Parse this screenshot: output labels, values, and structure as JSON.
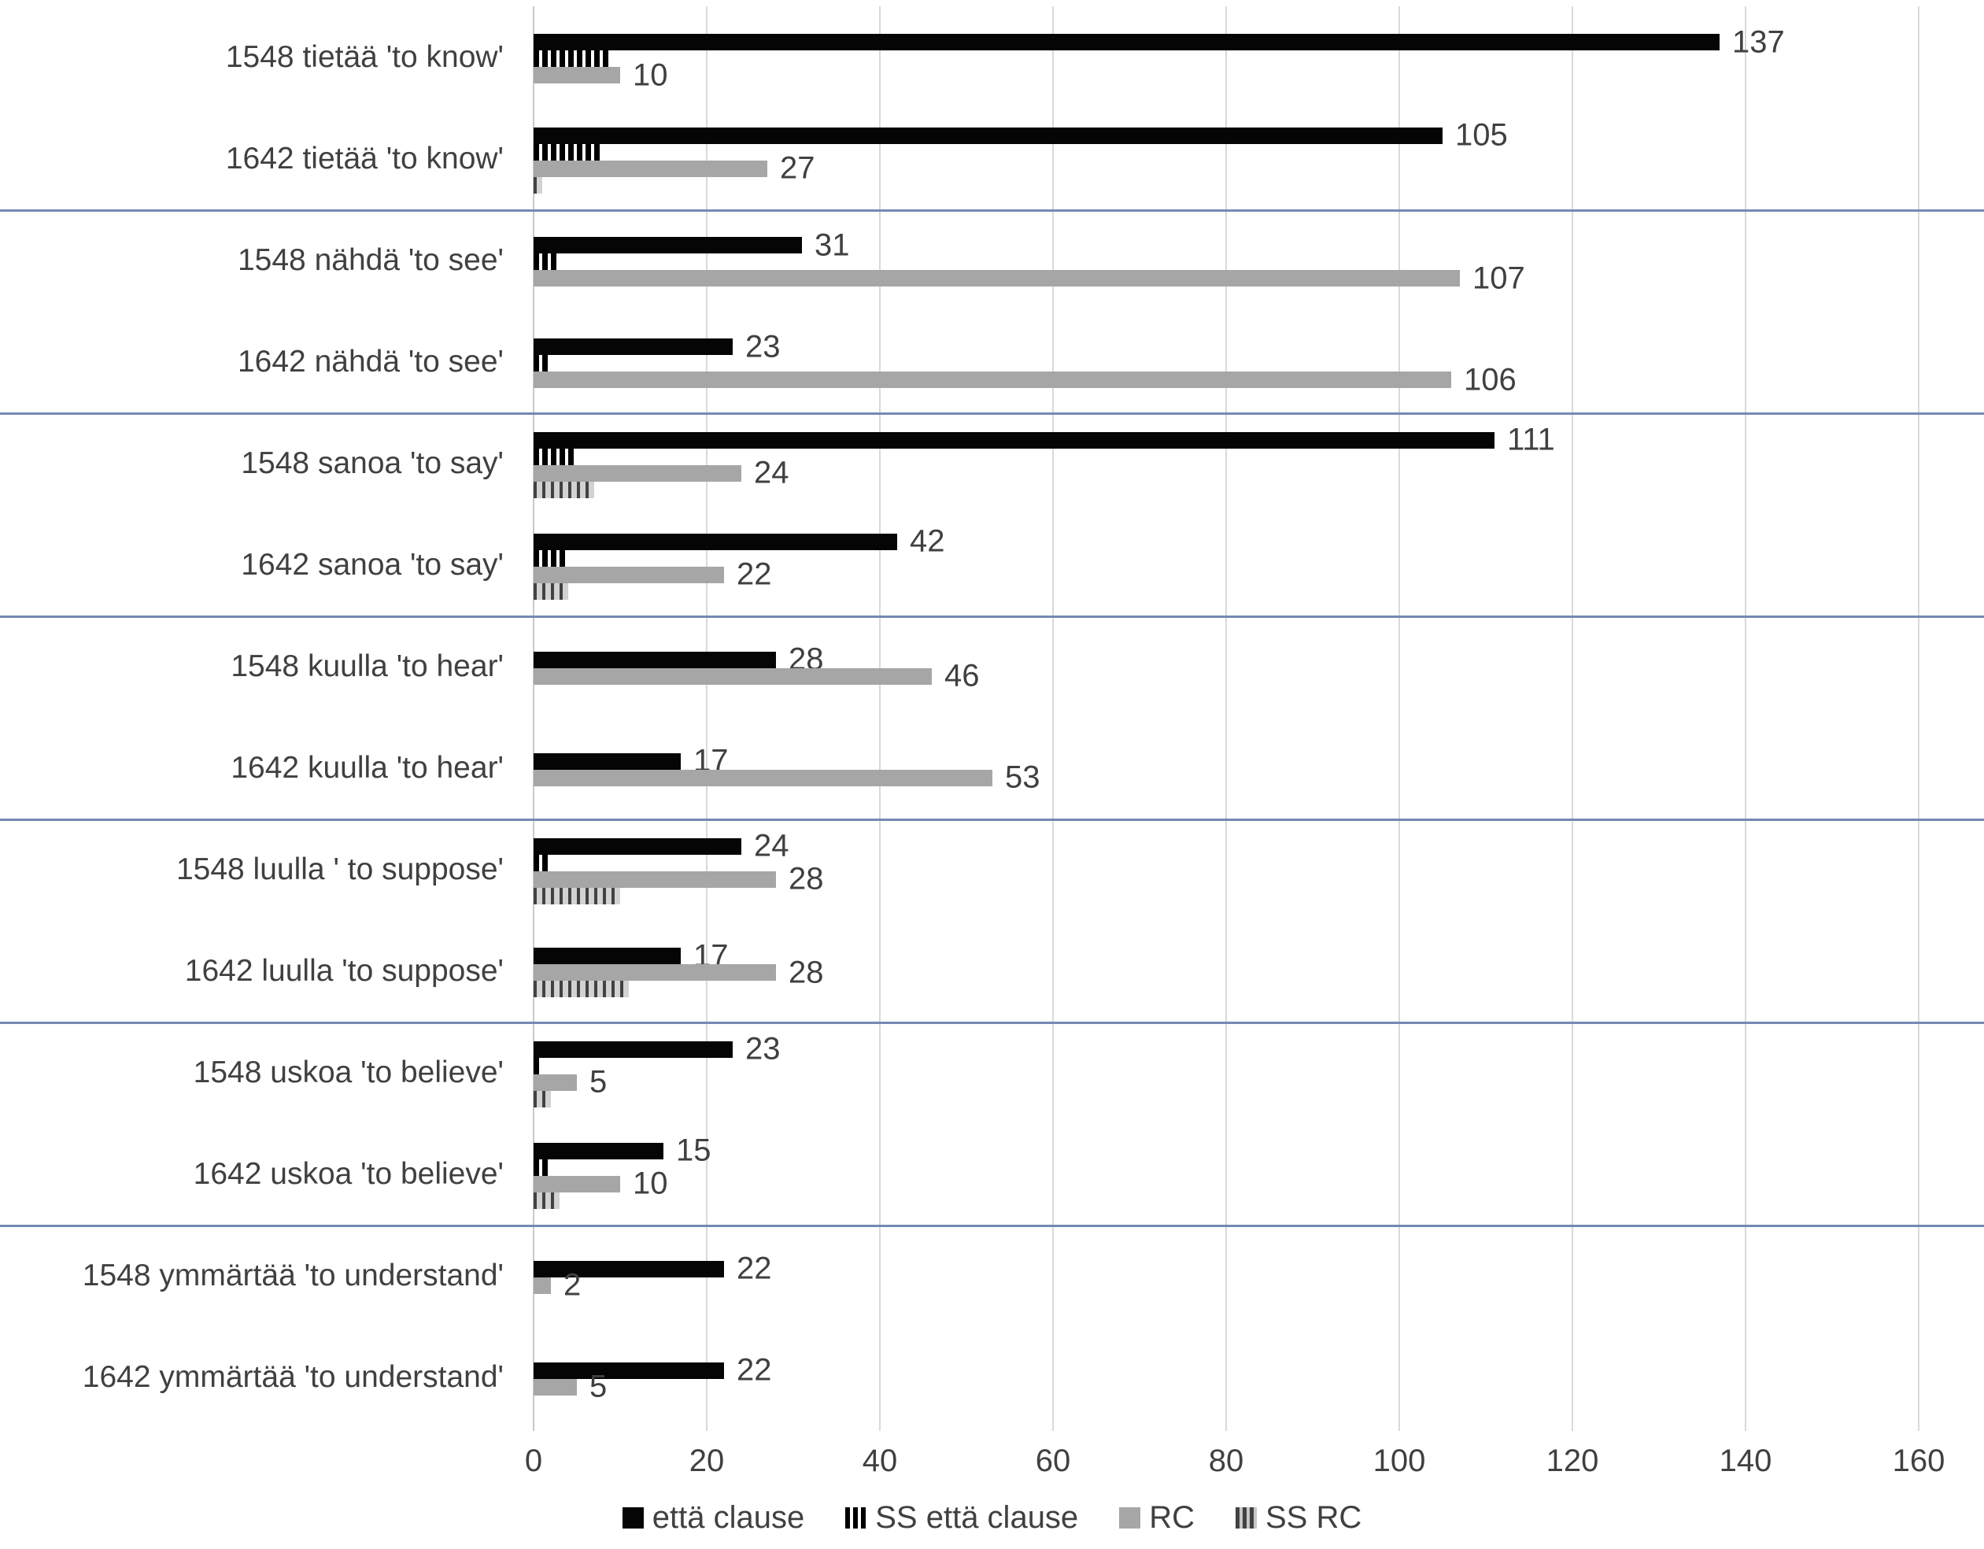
{
  "chart_data": {
    "type": "bar",
    "orientation": "horizontal",
    "title": "",
    "xlabel": "",
    "ylabel": "",
    "x_axis": {
      "ticks": [
        0,
        20,
        40,
        60,
        80,
        100,
        120,
        140,
        160
      ],
      "min": 0,
      "max": 160,
      "grid": true
    },
    "legend": [
      {
        "key": "etta",
        "label": "että clause",
        "style": "solid-black"
      },
      {
        "key": "ss_etta",
        "label": "SS että clause",
        "style": "striped-black"
      },
      {
        "key": "rc",
        "label": "RC",
        "style": "solid-gray"
      },
      {
        "key": "ss_rc",
        "label": "SS RC",
        "style": "striped-gray"
      }
    ],
    "legend_position": "bottom-center",
    "series_order": [
      "etta",
      "ss_etta",
      "rc",
      "ss_rc"
    ],
    "colors": {
      "etta": "#050505",
      "rc": "#a6a6a6",
      "separator_blue": "#7489b2",
      "gridline": "#d9d9d9",
      "text": "#404040"
    },
    "categories": [
      {
        "label": "1548 tietää 'to know'",
        "etta": 137,
        "ss_etta": 9,
        "rc": 10,
        "ss_rc": 0,
        "value_labels": {
          "etta": "137",
          "rc": "10"
        }
      },
      {
        "label": "1642 tietää 'to know'",
        "etta": 105,
        "ss_etta": 8,
        "rc": 27,
        "ss_rc": 1,
        "value_labels": {
          "etta": "105",
          "rc": "27"
        }
      },
      {
        "label": "1548 nähdä 'to see'",
        "etta": 31,
        "ss_etta": 3,
        "rc": 107,
        "ss_rc": 0,
        "value_labels": {
          "etta": "31",
          "rc": "107"
        }
      },
      {
        "label": "1642 nähdä 'to see'",
        "etta": 23,
        "ss_etta": 2,
        "rc": 106,
        "ss_rc": 0,
        "value_labels": {
          "etta": "23",
          "rc": "106"
        }
      },
      {
        "label": "1548 sanoa 'to say'",
        "etta": 111,
        "ss_etta": 5,
        "rc": 24,
        "ss_rc": 7,
        "value_labels": {
          "etta": "111",
          "rc": "24"
        }
      },
      {
        "label": "1642 sanoa 'to say'",
        "etta": 42,
        "ss_etta": 4,
        "rc": 22,
        "ss_rc": 4,
        "value_labels": {
          "etta": "42",
          "rc": "22"
        }
      },
      {
        "label": "1548 kuulla 'to hear'",
        "etta": 28,
        "ss_etta": 0,
        "rc": 46,
        "ss_rc": 0,
        "value_labels": {
          "etta": "28",
          "rc": "46"
        }
      },
      {
        "label": "1642 kuulla 'to hear'",
        "etta": 17,
        "ss_etta": 0,
        "rc": 53,
        "ss_rc": 0,
        "value_labels": {
          "etta": "17",
          "rc": "53"
        }
      },
      {
        "label": "1548 luulla ' to suppose'",
        "etta": 24,
        "ss_etta": 2,
        "rc": 28,
        "ss_rc": 10,
        "value_labels": {
          "etta": "24",
          "rc": "28"
        }
      },
      {
        "label": "1642 luulla 'to suppose'",
        "etta": 17,
        "ss_etta": 0,
        "rc": 28,
        "ss_rc": 11,
        "value_labels": {
          "etta": "17",
          "rc": "28"
        }
      },
      {
        "label": "1548 uskoa 'to believe'",
        "etta": 23,
        "ss_etta": 1,
        "rc": 5,
        "ss_rc": 2,
        "value_labels": {
          "etta": "23",
          "rc": "5"
        }
      },
      {
        "label": "1642 uskoa 'to believe'",
        "etta": 15,
        "ss_etta": 2,
        "rc": 10,
        "ss_rc": 3,
        "value_labels": {
          "etta": "15",
          "rc": "10"
        }
      },
      {
        "label": "1548 ymmärtää 'to understand'",
        "etta": 22,
        "ss_etta": 0,
        "rc": 2,
        "ss_rc": 0,
        "value_labels": {
          "etta": "22",
          "rc": "2"
        }
      },
      {
        "label": "1642 ymmärtää 'to understand'",
        "etta": 22,
        "ss_etta": 0,
        "rc": 5,
        "ss_rc": 0,
        "value_labels": {
          "etta": "22",
          "rc": "5"
        }
      }
    ],
    "group_separators_after_category_index": [
      1,
      3,
      5,
      7,
      9,
      11
    ]
  }
}
